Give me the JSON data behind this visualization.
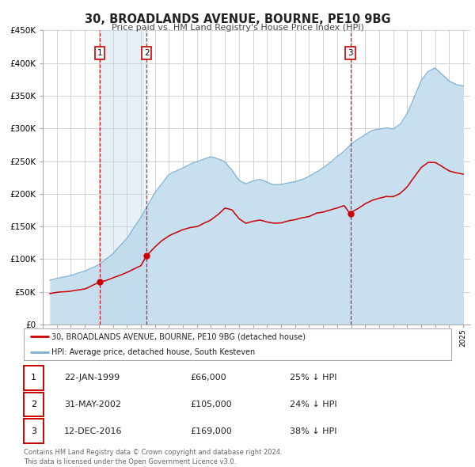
{
  "title": "30, BROADLANDS AVENUE, BOURNE, PE10 9BG",
  "subtitle": "Price paid vs. HM Land Registry's House Price Index (HPI)",
  "legend_entry1": "30, BROADLANDS AVENUE, BOURNE, PE10 9BG (detached house)",
  "legend_entry2": "HPI: Average price, detached house, South Kesteven",
  "table_entries": [
    {
      "num": "1",
      "date": "22-JAN-1999",
      "price": "£66,000",
      "pct": "25% ↓ HPI"
    },
    {
      "num": "2",
      "date": "31-MAY-2002",
      "price": "£105,000",
      "pct": "24% ↓ HPI"
    },
    {
      "num": "3",
      "date": "12-DEC-2016",
      "price": "£169,000",
      "pct": "38% ↓ HPI"
    }
  ],
  "footnote": "Contains HM Land Registry data © Crown copyright and database right 2024.\nThis data is licensed under the Open Government Licence v3.0.",
  "sale_dates_decimal": [
    1999.056,
    2002.414,
    2016.944
  ],
  "sale_prices": [
    66000,
    105000,
    169000
  ],
  "red_color": "#cc0000",
  "blue_color": "#7ab0d4",
  "blue_fill": "#c8dff0",
  "vline_color": "#cc0000",
  "grid_color": "#cccccc",
  "background_color": "#ffffff",
  "ylim": [
    0,
    450000
  ],
  "yticks": [
    0,
    50000,
    100000,
    150000,
    200000,
    250000,
    300000,
    350000,
    400000,
    450000
  ],
  "xlim_start": 1995.0,
  "xlim_end": 2025.5,
  "hpi_control_points": [
    [
      1995.5,
      65000
    ],
    [
      1996.0,
      68000
    ],
    [
      1997.0,
      73000
    ],
    [
      1998.0,
      80000
    ],
    [
      1999.0,
      89000
    ],
    [
      2000.0,
      105000
    ],
    [
      2001.0,
      130000
    ],
    [
      2002.0,
      162000
    ],
    [
      2003.0,
      200000
    ],
    [
      2004.0,
      228000
    ],
    [
      2005.0,
      238000
    ],
    [
      2006.0,
      248000
    ],
    [
      2007.0,
      255000
    ],
    [
      2007.5,
      252000
    ],
    [
      2008.0,
      248000
    ],
    [
      2008.5,
      235000
    ],
    [
      2009.0,
      220000
    ],
    [
      2009.5,
      215000
    ],
    [
      2010.0,
      220000
    ],
    [
      2010.5,
      222000
    ],
    [
      2011.0,
      218000
    ],
    [
      2011.5,
      215000
    ],
    [
      2012.0,
      215000
    ],
    [
      2012.5,
      218000
    ],
    [
      2013.0,
      220000
    ],
    [
      2013.5,
      223000
    ],
    [
      2014.0,
      228000
    ],
    [
      2014.5,
      235000
    ],
    [
      2015.0,
      242000
    ],
    [
      2015.5,
      250000
    ],
    [
      2016.0,
      260000
    ],
    [
      2016.5,
      268000
    ],
    [
      2017.0,
      278000
    ],
    [
      2017.5,
      285000
    ],
    [
      2018.0,
      292000
    ],
    [
      2018.5,
      298000
    ],
    [
      2019.0,
      300000
    ],
    [
      2019.5,
      302000
    ],
    [
      2020.0,
      300000
    ],
    [
      2020.5,
      308000
    ],
    [
      2021.0,
      325000
    ],
    [
      2021.5,
      350000
    ],
    [
      2022.0,
      375000
    ],
    [
      2022.5,
      390000
    ],
    [
      2023.0,
      395000
    ],
    [
      2023.5,
      385000
    ],
    [
      2024.0,
      375000
    ],
    [
      2024.5,
      370000
    ],
    [
      2025.0,
      368000
    ]
  ],
  "prop_control_points": [
    [
      1995.5,
      48000
    ],
    [
      1996.0,
      50000
    ],
    [
      1997.0,
      52000
    ],
    [
      1998.0,
      55000
    ],
    [
      1999.056,
      66000
    ],
    [
      1999.5,
      68000
    ],
    [
      2000.0,
      72000
    ],
    [
      2000.5,
      76000
    ],
    [
      2001.0,
      80000
    ],
    [
      2001.5,
      85000
    ],
    [
      2002.0,
      90000
    ],
    [
      2002.414,
      105000
    ],
    [
      2003.0,
      118000
    ],
    [
      2003.5,
      128000
    ],
    [
      2004.0,
      135000
    ],
    [
      2004.5,
      140000
    ],
    [
      2005.0,
      145000
    ],
    [
      2005.5,
      148000
    ],
    [
      2006.0,
      150000
    ],
    [
      2006.5,
      155000
    ],
    [
      2007.0,
      160000
    ],
    [
      2007.5,
      168000
    ],
    [
      2008.0,
      178000
    ],
    [
      2008.5,
      175000
    ],
    [
      2009.0,
      162000
    ],
    [
      2009.5,
      155000
    ],
    [
      2010.0,
      158000
    ],
    [
      2010.5,
      160000
    ],
    [
      2011.0,
      157000
    ],
    [
      2011.5,
      155000
    ],
    [
      2012.0,
      155000
    ],
    [
      2012.5,
      158000
    ],
    [
      2013.0,
      160000
    ],
    [
      2013.5,
      163000
    ],
    [
      2014.0,
      165000
    ],
    [
      2014.5,
      170000
    ],
    [
      2015.0,
      172000
    ],
    [
      2015.5,
      175000
    ],
    [
      2016.0,
      178000
    ],
    [
      2016.5,
      182000
    ],
    [
      2016.944,
      169000
    ],
    [
      2017.0,
      172000
    ],
    [
      2017.5,
      178000
    ],
    [
      2018.0,
      185000
    ],
    [
      2018.5,
      190000
    ],
    [
      2019.0,
      193000
    ],
    [
      2019.5,
      196000
    ],
    [
      2020.0,
      195000
    ],
    [
      2020.5,
      200000
    ],
    [
      2021.0,
      210000
    ],
    [
      2021.5,
      225000
    ],
    [
      2022.0,
      240000
    ],
    [
      2022.5,
      248000
    ],
    [
      2023.0,
      248000
    ],
    [
      2023.5,
      242000
    ],
    [
      2024.0,
      235000
    ],
    [
      2024.5,
      232000
    ],
    [
      2025.0,
      230000
    ]
  ]
}
